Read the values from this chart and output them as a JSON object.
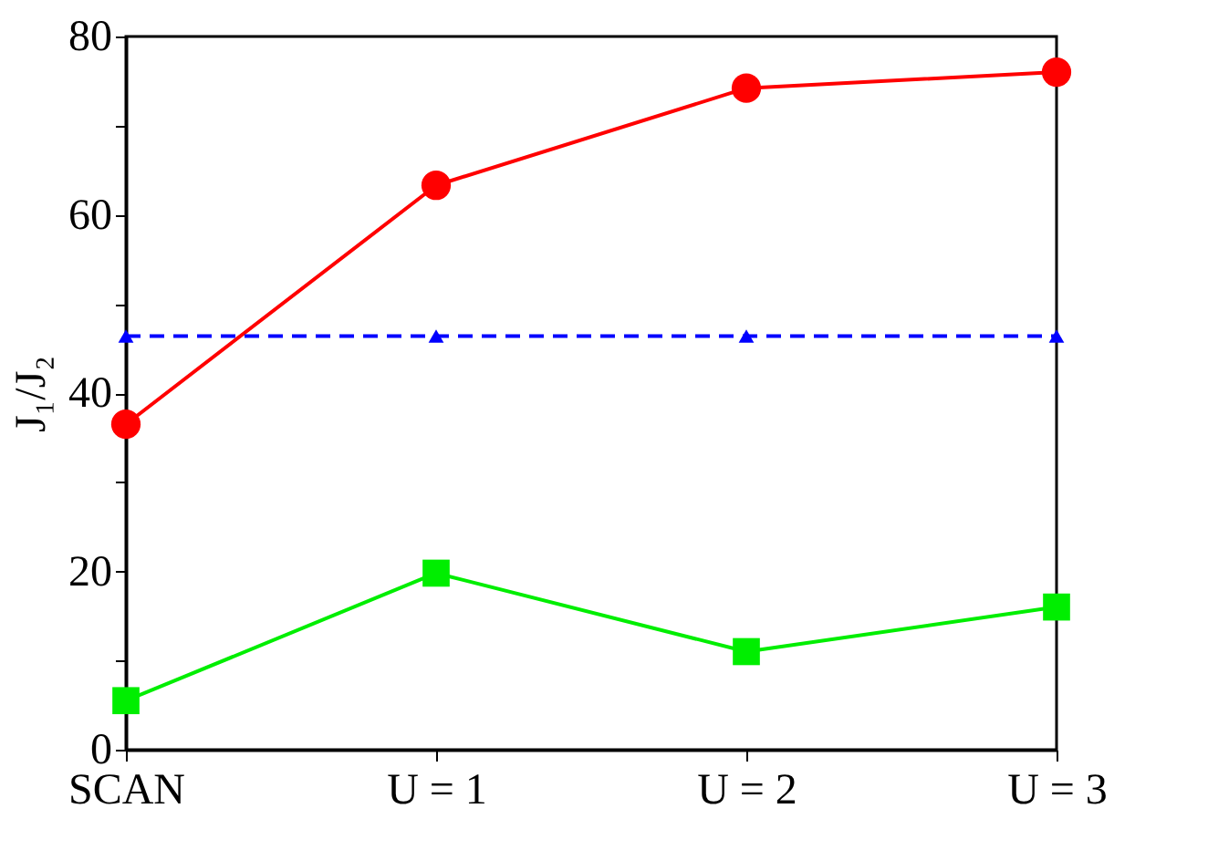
{
  "chart_data": {
    "type": "line",
    "ylabel": "J₁/J₂",
    "categories": [
      "SCAN",
      "U = 1",
      "U = 2",
      "U = 3"
    ],
    "series": [
      {
        "color": "#ff0000",
        "values": [
          36.5,
          63.3,
          74.2,
          76.0
        ],
        "marker": "circle",
        "line_style": "solid"
      },
      {
        "color": "#0000ff",
        "values": [
          46.4,
          46.4,
          46.4,
          46.4
        ],
        "marker": "triangle",
        "line_style": "dashed"
      },
      {
        "color": "#00ee00",
        "values": [
          5.5,
          19.8,
          11.0,
          16.0
        ],
        "marker": "square",
        "line_style": "solid"
      }
    ],
    "ylim": [
      0,
      80
    ],
    "yticks": [
      0,
      {
        "value": 10,
        "label": null
      },
      20,
      {
        "value": 30,
        "label": null
      },
      40,
      {
        "value": 50,
        "label": null
      },
      60,
      {
        "value": 70,
        "label": null
      },
      80
    ],
    "grid": false
  }
}
